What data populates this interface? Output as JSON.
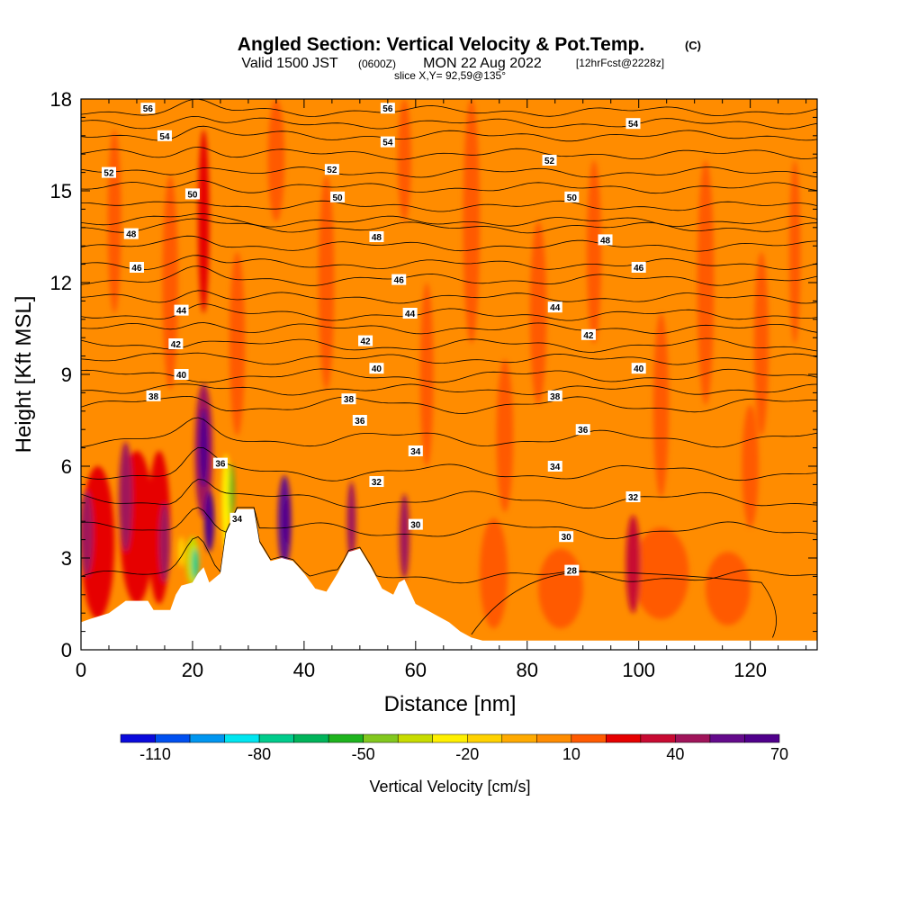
{
  "chart_data": {
    "type": "heatmap",
    "title": "Angled Section: Vertical Velocity & Pot.Temp.",
    "title_suffix": "(C)",
    "subtitle_main": "Valid 1500 JST",
    "subtitle_utc": "(0600Z)",
    "subtitle_date": "MON 22 Aug 2022",
    "subtitle_fcst": "[12hrFcst@2228z]",
    "slice_label": "slice X,Y= 92,59@135°",
    "xlabel": "Distance [nm]",
    "ylabel": "Height [Kft MSL]",
    "xlim": [
      0,
      132
    ],
    "ylim": [
      0,
      18
    ],
    "x_ticks": [
      "0",
      "20",
      "40",
      "60",
      "80",
      "100",
      "120"
    ],
    "y_ticks": [
      "0",
      "3",
      "6",
      "9",
      "12",
      "15",
      "18"
    ],
    "colorbar": {
      "label": "Vertical Velocity [cm/s]",
      "tick_labels": [
        "-110",
        "-80",
        "-50",
        "-20",
        "10",
        "40",
        "70"
      ],
      "bins": [
        -120,
        -110,
        -100,
        -90,
        -80,
        -70,
        -60,
        -50,
        -40,
        -30,
        -20,
        -10,
        0,
        10,
        20,
        30,
        40,
        50,
        60,
        70
      ],
      "colors": [
        "#0a0adc",
        "#0050f0",
        "#0096f0",
        "#00e6f0",
        "#00cc8c",
        "#00b45a",
        "#1eb41e",
        "#82c81e",
        "#c8dc00",
        "#fff000",
        "#ffd200",
        "#ffaa00",
        "#ff8c00",
        "#ff5a00",
        "#e60000",
        "#c80a32",
        "#a0145a",
        "#640a8c",
        "#50008c"
      ]
    },
    "background_velocity": "0 to 10 cm/s (gold)",
    "updraft_cores": [
      {
        "x": 22,
        "height_kft": 6.5,
        "max_cm_s": 70
      },
      {
        "x": 36.5,
        "height_kft": 4.2,
        "max_cm_s": 70
      },
      {
        "x": 48.5,
        "height_kft": 4.3,
        "max_cm_s": 40
      },
      {
        "x": 58,
        "height_kft": 3.7,
        "max_cm_s": 40
      },
      {
        "x": 99,
        "height_kft": 2.8,
        "max_cm_s": 30
      },
      {
        "x": 8,
        "height_kft": 5.2,
        "max_cm_s": 30
      },
      {
        "x": 15,
        "height_kft": 3.5,
        "max_cm_s": 30
      },
      {
        "x": 1,
        "height_kft": 4,
        "max_cm_s": 40
      }
    ],
    "downdraft_cores": [
      {
        "x": 20,
        "height_kft": 3,
        "min_cm_s": -70
      },
      {
        "x": 27,
        "height_kft": 5,
        "min_cm_s": -50
      }
    ],
    "theta_contour_labels": [
      {
        "text": "56",
        "x": 12,
        "y": 17.7
      },
      {
        "text": "56",
        "x": 55,
        "y": 17.7
      },
      {
        "text": "54",
        "x": 15,
        "y": 16.8
      },
      {
        "text": "54",
        "x": 55,
        "y": 16.6
      },
      {
        "text": "54",
        "x": 99,
        "y": 17.2
      },
      {
        "text": "52",
        "x": 5,
        "y": 15.6
      },
      {
        "text": "52",
        "x": 45,
        "y": 15.7
      },
      {
        "text": "52",
        "x": 84,
        "y": 16.0
      },
      {
        "text": "50",
        "x": 20,
        "y": 14.9
      },
      {
        "text": "50",
        "x": 46,
        "y": 14.8
      },
      {
        "text": "50",
        "x": 88,
        "y": 14.8
      },
      {
        "text": "48",
        "x": 9,
        "y": 13.6
      },
      {
        "text": "48",
        "x": 53,
        "y": 13.5
      },
      {
        "text": "48",
        "x": 94,
        "y": 13.4
      },
      {
        "text": "46",
        "x": 10,
        "y": 12.5
      },
      {
        "text": "46",
        "x": 57,
        "y": 12.1
      },
      {
        "text": "46",
        "x": 100,
        "y": 12.5
      },
      {
        "text": "44",
        "x": 18,
        "y": 11.1
      },
      {
        "text": "44",
        "x": 59,
        "y": 11.0
      },
      {
        "text": "44",
        "x": 85,
        "y": 11.2
      },
      {
        "text": "42",
        "x": 17,
        "y": 10.0
      },
      {
        "text": "42",
        "x": 51,
        "y": 10.1
      },
      {
        "text": "42",
        "x": 91,
        "y": 10.3
      },
      {
        "text": "40",
        "x": 18,
        "y": 9.0
      },
      {
        "text": "40",
        "x": 53,
        "y": 9.2
      },
      {
        "text": "40",
        "x": 100,
        "y": 9.2
      },
      {
        "text": "38",
        "x": 13,
        "y": 8.3
      },
      {
        "text": "38",
        "x": 48,
        "y": 8.2
      },
      {
        "text": "38",
        "x": 85,
        "y": 8.3
      },
      {
        "text": "36",
        "x": 50,
        "y": 7.5
      },
      {
        "text": "36",
        "x": 90,
        "y": 7.2
      },
      {
        "text": "36",
        "x": 25,
        "y": 6.1
      },
      {
        "text": "34",
        "x": 60,
        "y": 6.5
      },
      {
        "text": "34",
        "x": 85,
        "y": 6.0
      },
      {
        "text": "34",
        "x": 28,
        "y": 4.3
      },
      {
        "text": "32",
        "x": 53,
        "y": 5.5
      },
      {
        "text": "32",
        "x": 99,
        "y": 5.0
      },
      {
        "text": "30",
        "x": 60,
        "y": 4.1
      },
      {
        "text": "30",
        "x": 87,
        "y": 3.7
      },
      {
        "text": "28",
        "x": 88,
        "y": 2.6
      }
    ],
    "grid": false,
    "legend": "colorbar bottom"
  }
}
